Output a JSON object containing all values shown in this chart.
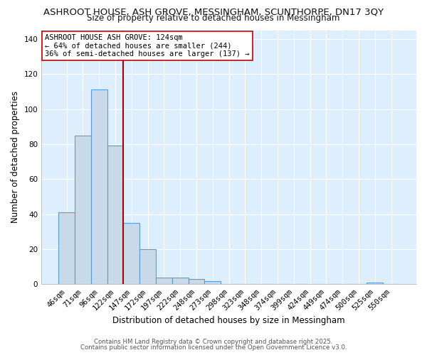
{
  "title1": "ASHROOT HOUSE, ASH GROVE, MESSINGHAM, SCUNTHORPE, DN17 3QY",
  "title2": "Size of property relative to detached houses in Messingham",
  "xlabel": "Distribution of detached houses by size in Messingham",
  "ylabel": "Number of detached properties",
  "bar_labels": [
    "46sqm",
    "71sqm",
    "96sqm",
    "122sqm",
    "147sqm",
    "172sqm",
    "197sqm",
    "222sqm",
    "248sqm",
    "273sqm",
    "298sqm",
    "323sqm",
    "348sqm",
    "374sqm",
    "399sqm",
    "424sqm",
    "449sqm",
    "474sqm",
    "500sqm",
    "525sqm",
    "550sqm"
  ],
  "bar_heights": [
    41,
    85,
    111,
    79,
    35,
    20,
    4,
    4,
    3,
    2,
    0,
    0,
    0,
    0,
    0,
    0,
    0,
    0,
    0,
    1,
    0
  ],
  "bar_color": "#c8daea",
  "bar_edge_color": "#5b9bd5",
  "property_line_color": "#aa0000",
  "property_line_x": 3.5,
  "ylim": [
    0,
    145
  ],
  "yticks": [
    0,
    20,
    40,
    60,
    80,
    100,
    120,
    140
  ],
  "annotation_line1": "ASHROOT HOUSE ASH GROVE: 124sqm",
  "annotation_line2": "← 64% of detached houses are smaller (244)",
  "annotation_line3": "36% of semi-detached houses are larger (137) →",
  "annotation_box_color": "#ffffff",
  "annotation_box_edge": "#cc0000",
  "footer1": "Contains HM Land Registry data © Crown copyright and database right 2025.",
  "footer2": "Contains public sector information licensed under the Open Government Licence v3.0.",
  "bg_color": "#ffffff",
  "plot_bg_color": "#ddeeff",
  "grid_color": "#ffffff",
  "title1_fontsize": 9.5,
  "title2_fontsize": 8.5,
  "axis_label_fontsize": 8.5,
  "tick_fontsize": 7.5,
  "footer_fontsize": 6.2,
  "annotation_fontsize": 7.5
}
